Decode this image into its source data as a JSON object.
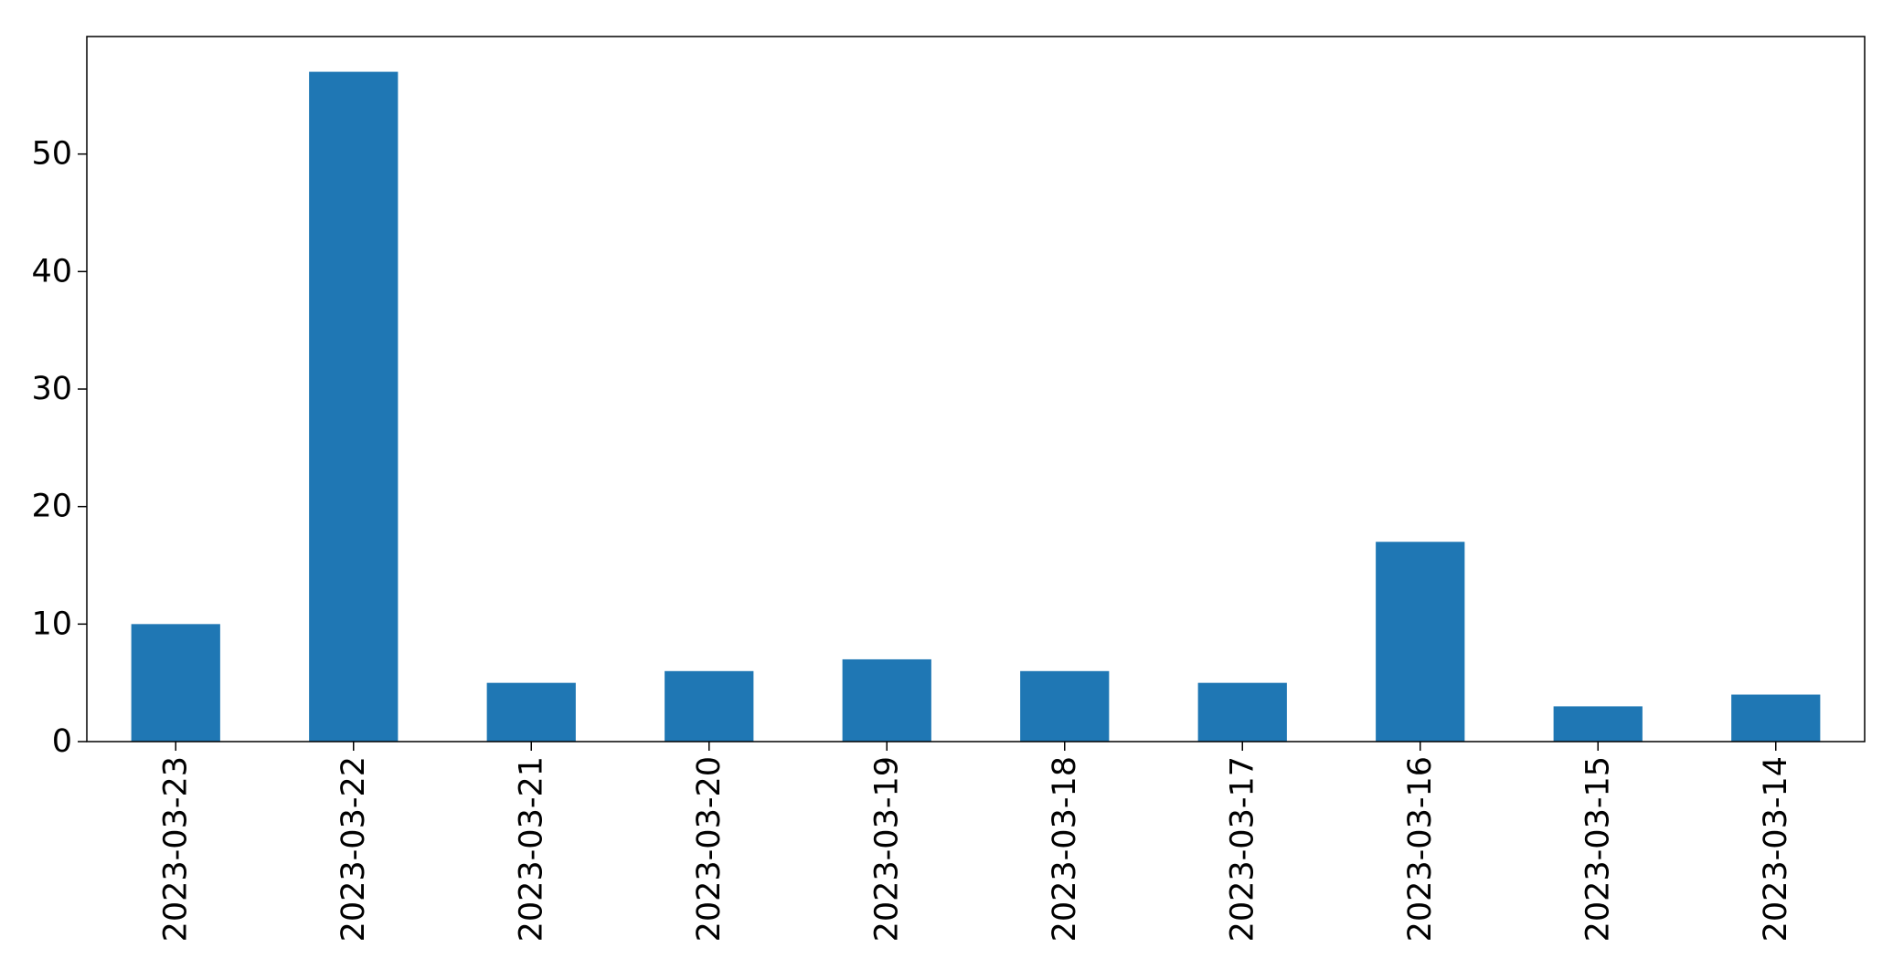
{
  "chart_data": {
    "type": "bar",
    "categories": [
      "2023-03-23",
      "2023-03-22",
      "2023-03-21",
      "2023-03-20",
      "2023-03-19",
      "2023-03-18",
      "2023-03-17",
      "2023-03-16",
      "2023-03-15",
      "2023-03-14"
    ],
    "values": [
      10,
      57,
      5,
      6,
      7,
      6,
      5,
      17,
      3,
      4
    ],
    "title": "",
    "xlabel": "",
    "ylabel": "",
    "ylim": [
      0,
      60
    ],
    "yticks": [
      0,
      10,
      20,
      30,
      40,
      50
    ],
    "grid": false,
    "legend": "none",
    "colors": {
      "bar": "#1f77b4",
      "axis": "#000000",
      "background": "#ffffff"
    }
  }
}
